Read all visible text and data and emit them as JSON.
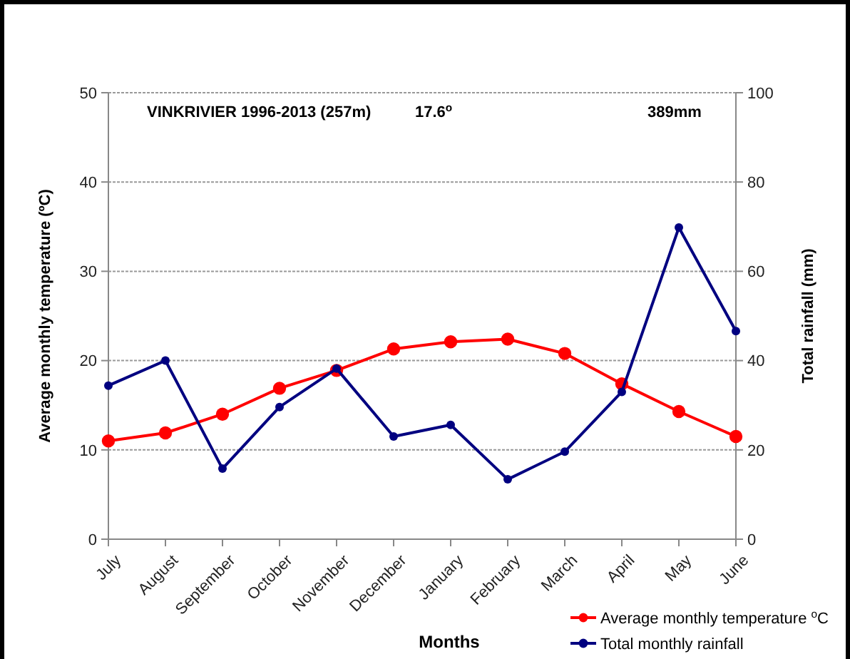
{
  "chart_data": {
    "type": "line",
    "title": "VINKRIVIER 1996-2013  (257m)",
    "annotations": [
      "17.6$^{o}$",
      "389mm"
    ],
    "xlabel": "Months",
    "ylabel": "Average monthly  temperature (ºC)",
    "y2label": "Total rainfall (mm)",
    "categories": [
      "July",
      "August",
      "September",
      "October",
      "November",
      "December",
      "January",
      "February",
      "March",
      "April",
      "May",
      "June"
    ],
    "series": [
      {
        "name": "Average monthly temperature $^{o}$C",
        "color": "#ff0000",
        "values": [
          11.0,
          11.9,
          14.0,
          16.9,
          18.9,
          21.3,
          22.1,
          22.4,
          20.8,
          17.4,
          14.3,
          11.5
        ]
      },
      {
        "name": "Total monthly rainfall",
        "color": "#000080",
        "axis": "y2",
        "values": [
          34.4,
          40,
          15.8,
          29.6,
          38.2,
          23,
          25.6,
          13.4,
          19.6,
          33,
          69.8,
          46.6
        ]
      }
    ],
    "ylim": [
      0,
      50
    ],
    "yticks": [
      0,
      10,
      20,
      30,
      40,
      50
    ],
    "y2lim": [
      0,
      100
    ],
    "y2ticks": [
      0,
      20,
      40,
      60,
      80,
      100
    ],
    "grid": "y",
    "legend": "bottom right",
    "marker": "circle",
    "line_style": "solid"
  }
}
